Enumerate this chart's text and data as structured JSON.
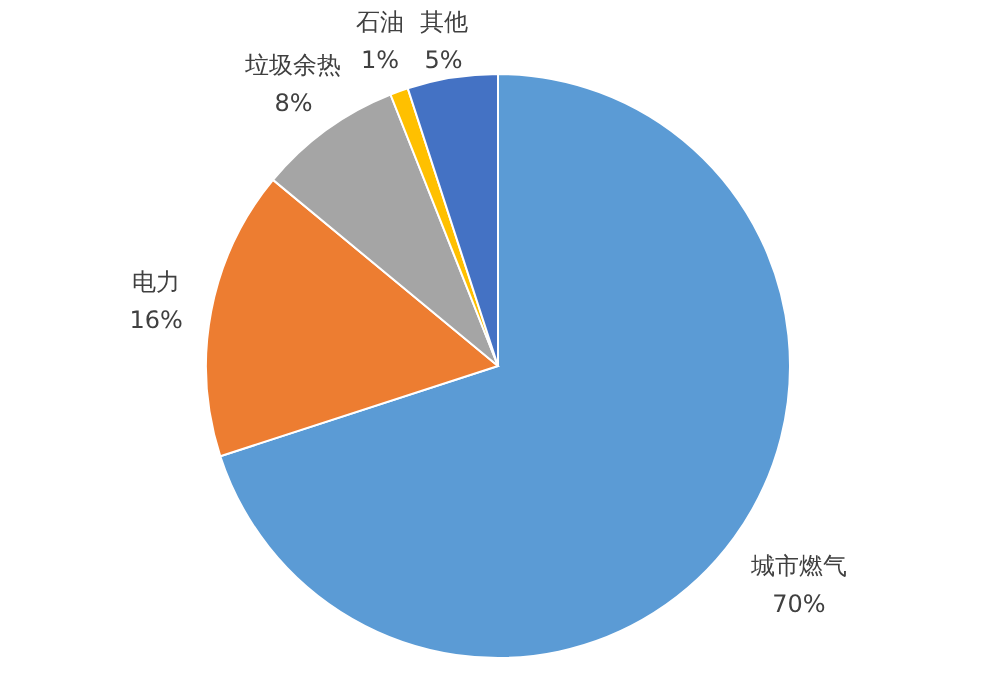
{
  "chart_data": {
    "type": "pie",
    "categories": [
      "城市燃气",
      "电力",
      "垃圾余热",
      "石油",
      "其他"
    ],
    "values": [
      70,
      16,
      8,
      1,
      5
    ],
    "colors": [
      "#5b9bd5",
      "#ed7d31",
      "#a5a5a5",
      "#ffc000",
      "#4472c4"
    ],
    "value_labels": [
      "70%",
      "16%",
      "8%",
      "1%",
      "5%"
    ]
  }
}
